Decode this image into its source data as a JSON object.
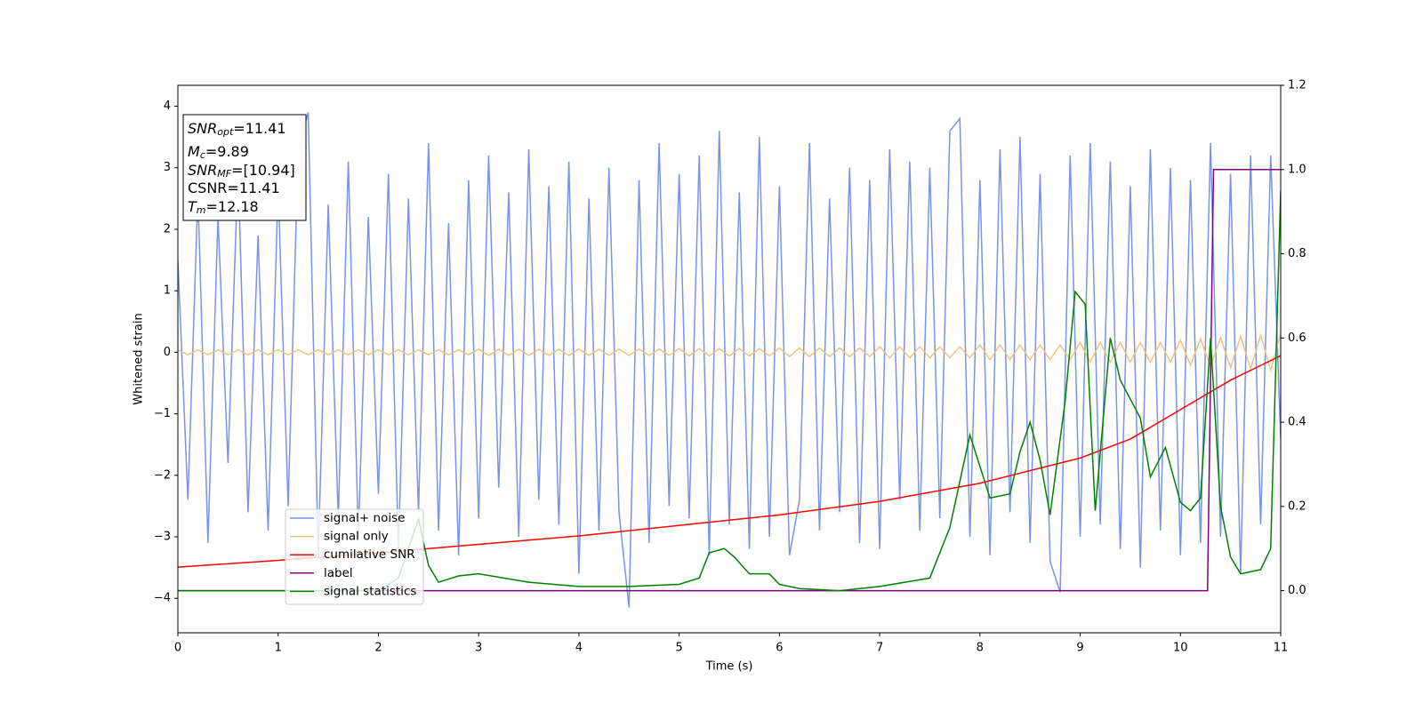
{
  "chart_data": {
    "type": "line",
    "xlabel": "Time (s)",
    "ylabel": "Whitened strain",
    "xlim": [
      0,
      11
    ],
    "xticks": [
      0,
      1,
      2,
      3,
      4,
      5,
      6,
      7,
      8,
      9,
      10,
      11
    ],
    "ylim": [
      -4.56,
      4.34
    ],
    "yticks": [
      -4,
      -3,
      -2,
      -1,
      0,
      1,
      2,
      3,
      4
    ],
    "y2lim": [
      -0.1,
      1.2
    ],
    "y2ticks": [
      {
        "value": 0,
        "label": "0.0"
      },
      0.2,
      0.4,
      0.6,
      0.8,
      {
        "value": 1,
        "label": "1.0"
      },
      1.2
    ],
    "x": [
      0,
      0.1,
      0.2,
      0.3,
      0.4,
      0.5,
      0.6,
      0.7,
      0.8,
      0.9,
      1,
      1.1,
      1.2,
      1.3,
      1.4,
      1.5,
      1.6,
      1.7,
      1.8,
      1.9,
      2,
      2.1,
      2.2,
      2.3,
      2.4,
      2.5,
      2.6,
      2.7,
      2.8,
      2.9,
      3,
      3.1,
      3.2,
      3.3,
      3.4,
      3.5,
      3.6,
      3.7,
      3.8,
      3.9,
      4,
      4.1,
      4.2,
      4.3,
      4.4,
      4.5,
      4.6,
      4.7,
      4.8,
      4.9,
      5,
      5.1,
      5.2,
      5.3,
      5.4,
      5.5,
      5.6,
      5.7,
      5.8,
      5.9,
      6,
      6.1,
      6.2,
      6.3,
      6.4,
      6.5,
      6.6,
      6.7,
      6.8,
      6.9,
      7,
      7.1,
      7.2,
      7.3,
      7.4,
      7.5,
      7.6,
      7.7,
      7.8,
      7.9,
      8,
      8.1,
      8.2,
      8.3,
      8.4,
      8.5,
      8.6,
      8.7,
      8.8,
      8.9,
      9,
      9.1,
      9.2,
      9.3,
      9.4,
      9.5,
      9.6,
      9.7,
      9.8,
      9.9,
      10,
      10.1,
      10.2,
      10.3,
      10.4,
      10.5,
      10.6,
      10.7,
      10.8,
      10.9,
      11
    ],
    "annotations": [
      {
        "main": "SNR",
        "sub": "opt",
        "rest": "=11.41"
      },
      {
        "main": "M",
        "sub": "c",
        "rest": "=9.89"
      },
      {
        "main": "SNR",
        "sub": "MF",
        "rest": "=[10.94]"
      },
      {
        "main": "CSNR",
        "rest": "=11.41"
      },
      {
        "main": "T",
        "sub": "m",
        "rest": "=12.18"
      }
    ],
    "series": [
      {
        "name": "signal+ noise",
        "color": "#7893e8",
        "values": [
          1.5,
          -2.4,
          2.6,
          -3.1,
          2.2,
          -1.8,
          3.0,
          -2.6,
          1.9,
          -2.9,
          2.7,
          -2.5,
          3.3,
          3.9,
          -3.3,
          2.4,
          -2.7,
          3.1,
          -3.0,
          2.2,
          -2.3,
          2.9,
          -3.2,
          2.5,
          -2.6,
          3.4,
          -2.9,
          2.1,
          -3.3,
          2.8,
          -2.7,
          3.2,
          -2.2,
          2.6,
          -3.0,
          3.3,
          -2.4,
          2.7,
          -2.8,
          3.1,
          -3.6,
          2.5,
          -2.9,
          3.0,
          -2.6,
          -4.15,
          2.8,
          -3.1,
          3.4,
          -2.5,
          2.9,
          -2.7,
          3.2,
          -3.3,
          3.6,
          -2.8,
          2.6,
          -3.2,
          3.5,
          -3.0,
          2.7,
          -3.3,
          -2.4,
          3.4,
          -2.9,
          2.5,
          -2.6,
          3.0,
          -3.1,
          2.8,
          -3.2,
          3.3,
          -2.4,
          3.1,
          -2.9,
          3.0,
          -2.7,
          3.6,
          3.8,
          -3.0,
          2.8,
          -3.3,
          3.3,
          -2.6,
          3.5,
          -3.1,
          2.9,
          -3.4,
          -3.9,
          3.2,
          -3.0,
          3.4,
          -2.8,
          3.1,
          -3.2,
          2.7,
          -3.5,
          3.3,
          -2.9,
          3.0,
          -3.3,
          2.8,
          -3.1,
          3.4,
          -3.0,
          2.9,
          -3.6,
          3.2,
          -2.8,
          3.2,
          -1.4
        ]
      },
      {
        "name": "signal only",
        "color": "#f3c27e",
        "values": [
          0.04,
          -0.04,
          0.04,
          -0.04,
          0.04,
          -0.04,
          0.04,
          -0.04,
          0.04,
          -0.04,
          0.04,
          -0.04,
          0.04,
          -0.04,
          0.04,
          -0.04,
          0.04,
          -0.04,
          0.04,
          -0.04,
          0.04,
          -0.04,
          0.04,
          -0.04,
          0.04,
          -0.04,
          0.04,
          -0.04,
          0.04,
          -0.04,
          0.05,
          -0.05,
          0.05,
          -0.05,
          0.05,
          -0.05,
          0.05,
          -0.05,
          0.05,
          -0.05,
          0.05,
          -0.05,
          0.05,
          -0.05,
          0.05,
          -0.05,
          0.05,
          -0.05,
          0.05,
          -0.05,
          0.06,
          -0.06,
          0.06,
          -0.06,
          0.06,
          -0.06,
          0.06,
          -0.06,
          0.06,
          -0.06,
          0.07,
          -0.07,
          0.07,
          -0.07,
          0.07,
          -0.07,
          0.07,
          -0.07,
          0.07,
          -0.07,
          0.09,
          -0.09,
          0.09,
          -0.09,
          0.09,
          -0.09,
          0.09,
          -0.09,
          0.09,
          -0.09,
          0.12,
          -0.12,
          0.12,
          -0.12,
          0.12,
          -0.12,
          0.12,
          -0.12,
          0.12,
          -0.12,
          0.16,
          -0.16,
          0.16,
          -0.16,
          0.16,
          -0.16,
          0.16,
          -0.16,
          0.16,
          -0.16,
          0.2,
          -0.21,
          0.22,
          -0.23,
          0.24,
          -0.25,
          0.26,
          -0.27,
          0.28,
          -0.29,
          0.3
        ]
      },
      {
        "name": "cumilative SNR",
        "color": "#ff0000",
        "axis": "y2",
        "x": [
          0,
          1,
          2,
          3,
          4,
          5,
          6,
          7,
          8,
          9,
          9.5,
          10,
          10.5,
          11
        ],
        "values": [
          0.056,
          0.072,
          0.09,
          0.11,
          0.13,
          0.155,
          0.18,
          0.212,
          0.255,
          0.315,
          0.36,
          0.43,
          0.5,
          0.558
        ]
      },
      {
        "name": "label",
        "color": "#800080",
        "axis": "y2",
        "x": [
          0,
          10.27,
          10.33,
          11
        ],
        "values": [
          0,
          0,
          1,
          1
        ]
      },
      {
        "name": "signal statistics",
        "color": "#008000",
        "axis": "y2",
        "x": [
          0,
          2.0,
          2.2,
          2.4,
          2.5,
          2.6,
          2.8,
          3.0,
          3.5,
          4.0,
          4.5,
          5.0,
          5.2,
          5.3,
          5.45,
          5.55,
          5.7,
          5.9,
          6.0,
          6.2,
          6.6,
          7.0,
          7.5,
          7.7,
          7.9,
          8.1,
          8.3,
          8.4,
          8.5,
          8.6,
          8.7,
          8.85,
          8.95,
          9.05,
          9.15,
          9.3,
          9.4,
          9.6,
          9.7,
          9.85,
          10.0,
          10.1,
          10.2,
          10.3,
          10.4,
          10.5,
          10.6,
          10.8,
          10.9,
          11.0
        ],
        "values": [
          0.0,
          0.0,
          0.03,
          0.17,
          0.06,
          0.02,
          0.035,
          0.04,
          0.02,
          0.01,
          0.01,
          0.015,
          0.03,
          0.09,
          0.1,
          0.08,
          0.04,
          0.04,
          0.015,
          0.005,
          0.0,
          0.01,
          0.03,
          0.15,
          0.37,
          0.22,
          0.23,
          0.33,
          0.4,
          0.31,
          0.18,
          0.45,
          0.71,
          0.68,
          0.19,
          0.6,
          0.5,
          0.41,
          0.27,
          0.34,
          0.21,
          0.19,
          0.22,
          0.6,
          0.2,
          0.08,
          0.04,
          0.05,
          0.1,
          0.95
        ]
      }
    ]
  }
}
